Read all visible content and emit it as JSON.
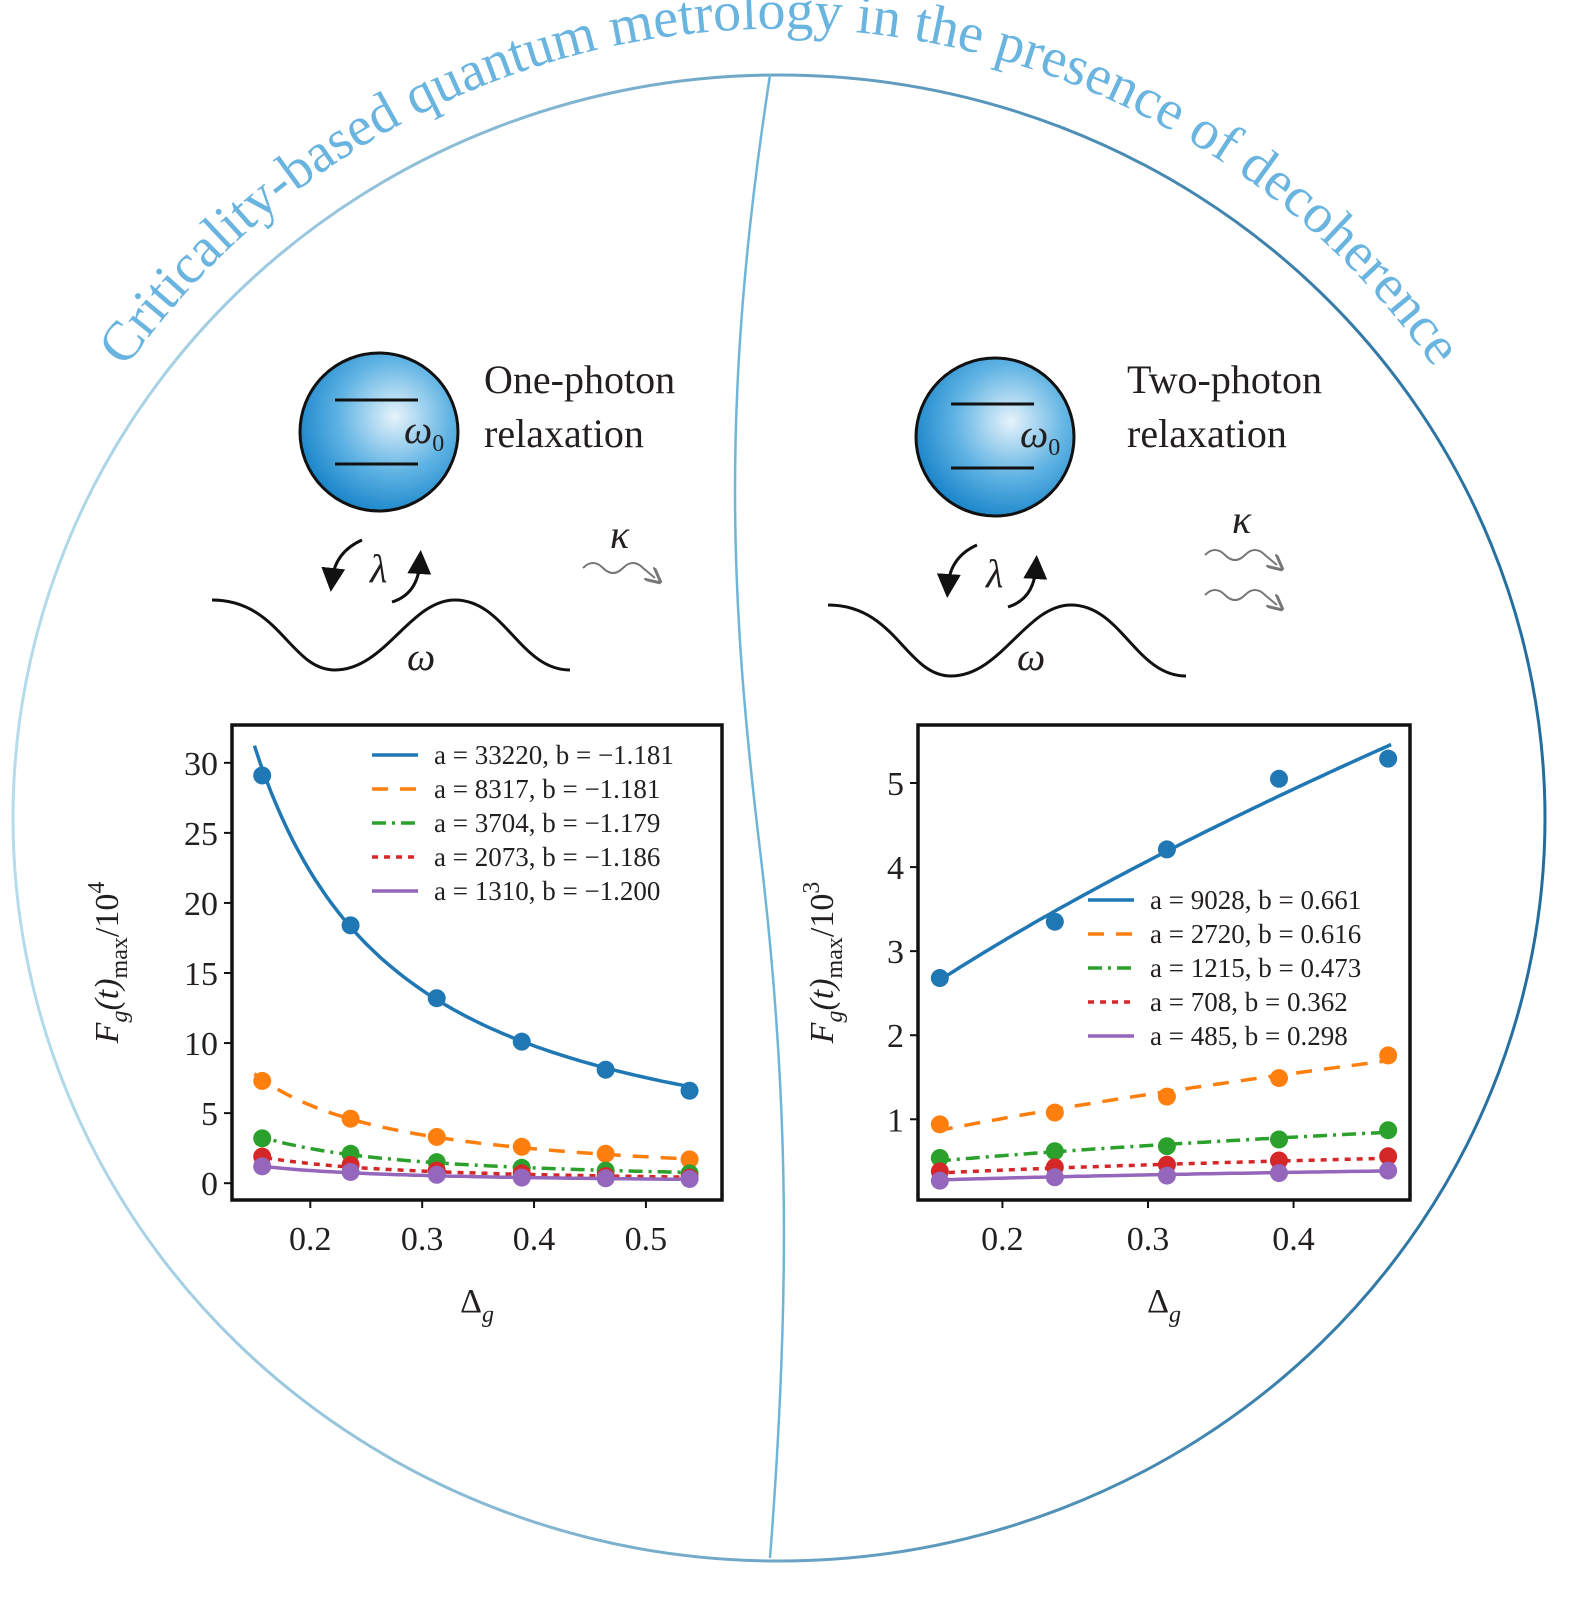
{
  "title": "Criticality-based quantum metrology in the presence of decoherence",
  "colors": {
    "title": "#6ab4e0",
    "circle_left": "#a9d6ea",
    "circle_right": "#2b7bab",
    "atom": "#1e8fd0"
  },
  "panels": [
    {
      "heading_line1": "One-photon",
      "heading_line2": "relaxation",
      "omega0": "ω",
      "omega0_sub": "0",
      "lambda": "λ",
      "omega": "ω",
      "kappa": "κ"
    },
    {
      "heading_line1": "Two-photon",
      "heading_line2": "relaxation",
      "omega0": "ω",
      "omega0_sub": "0",
      "lambda": "λ",
      "omega": "ω",
      "kappa": "κ"
    }
  ],
  "chart_data": [
    {
      "type": "scatter",
      "fit": "y = a * x^b",
      "xlabel": "Δ",
      "xlabel_sub": "g",
      "ylabel_parts": [
        "F",
        "g",
        "(t)",
        "max",
        "/10",
        "4"
      ],
      "scale": 10000,
      "xlim": [
        0.13,
        0.568
      ],
      "ylim": [
        -1.2,
        32.7
      ],
      "xticks": [
        0.2,
        0.3,
        0.4,
        0.5
      ],
      "xtick_labels": [
        "0.2",
        "0.3",
        "0.4",
        "0.5"
      ],
      "yticks": [
        0,
        5,
        10,
        15,
        20,
        25,
        30
      ],
      "ytick_labels": [
        "0",
        "5",
        "10",
        "15",
        "20",
        "25",
        "30"
      ],
      "legend_position": "top-right",
      "x": [
        0.157,
        0.236,
        0.313,
        0.389,
        0.464,
        0.539
      ],
      "fit_range": [
        0.15,
        0.545
      ],
      "series": [
        {
          "name": "a = 33220, b = −1.181",
          "a": 33220,
          "b": -1.181,
          "color": "#1f77b4",
          "dash": "",
          "values": [
            29.1,
            18.4,
            13.2,
            10.1,
            8.1,
            6.6
          ]
        },
        {
          "name": "a = 8317, b = −1.181",
          "a": 8317,
          "b": -1.181,
          "color": "#ff7f0e",
          "dash": "16 12",
          "values": [
            7.3,
            4.6,
            3.3,
            2.6,
            2.1,
            1.7
          ]
        },
        {
          "name": "a = 3704, b = −1.179",
          "a": 3704,
          "b": -1.179,
          "color": "#2ca02c",
          "dash": "14 6 3 6",
          "values": [
            3.2,
            2.1,
            1.5,
            1.1,
            0.9,
            0.7
          ]
        },
        {
          "name": "a = 2073, b = −1.186",
          "a": 2073,
          "b": -1.186,
          "color": "#d62728",
          "dash": "6 6",
          "values": [
            1.9,
            1.3,
            0.9,
            0.7,
            0.5,
            0.4
          ]
        },
        {
          "name": "a = 1310, b = −1.200",
          "a": 1310,
          "b": -1.2,
          "color": "#9467bd",
          "dash": "",
          "values": [
            1.2,
            0.8,
            0.6,
            0.4,
            0.35,
            0.3
          ]
        }
      ]
    },
    {
      "type": "scatter",
      "fit": "y = a * x^b",
      "xlabel": "Δ",
      "xlabel_sub": "g",
      "ylabel_parts": [
        "F",
        "g",
        "(t)",
        "max",
        "/10",
        "3"
      ],
      "scale": 1000,
      "xlim": [
        0.142,
        0.48
      ],
      "ylim": [
        0.04,
        5.69
      ],
      "xticks": [
        0.2,
        0.3,
        0.4
      ],
      "xtick_labels": [
        "0.2",
        "0.3",
        "0.4"
      ],
      "yticks": [
        1,
        2,
        3,
        4,
        5
      ],
      "ytick_labels": [
        "1",
        "2",
        "3",
        "4",
        "5"
      ],
      "legend_position": "center-right",
      "x": [
        0.157,
        0.236,
        0.313,
        0.39,
        0.465
      ],
      "fit_range": [
        0.155,
        0.467
      ],
      "series": [
        {
          "name": "a = 9028, b = 0.661",
          "a": 9028,
          "b": 0.661,
          "color": "#1f77b4",
          "dash": "",
          "values": [
            2.68,
            3.35,
            4.21,
            5.05,
            5.29
          ]
        },
        {
          "name": "a = 2720, b = 0.616",
          "a": 2720,
          "b": 0.616,
          "color": "#ff7f0e",
          "dash": "16 12",
          "values": [
            0.94,
            1.08,
            1.27,
            1.49,
            1.76
          ]
        },
        {
          "name": "a = 1215, b = 0.473",
          "a": 1215,
          "b": 0.473,
          "color": "#2ca02c",
          "dash": "14 6 3 6",
          "values": [
            0.54,
            0.62,
            0.68,
            0.76,
            0.87
          ]
        },
        {
          "name": "a = 708, b = 0.362",
          "a": 708,
          "b": 0.362,
          "color": "#d62728",
          "dash": "6 6",
          "values": [
            0.38,
            0.43,
            0.46,
            0.51,
            0.56
          ]
        },
        {
          "name": "a = 485, b = 0.298",
          "a": 485,
          "b": 0.298,
          "color": "#9467bd",
          "dash": "",
          "values": [
            0.27,
            0.31,
            0.33,
            0.36,
            0.39
          ]
        }
      ]
    }
  ]
}
